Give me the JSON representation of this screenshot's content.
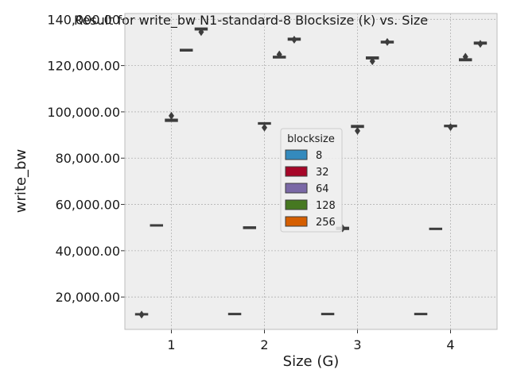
{
  "chart_data": {
    "type": "boxplot",
    "title": "Result for write_bw N1-standard-8 Blocksize (k) vs. Size",
    "xlabel": "Size (G)",
    "ylabel": "write_bw",
    "categories": [
      "1",
      "2",
      "3",
      "4"
    ],
    "ylim": [
      6000,
      142500
    ],
    "yticks": [
      20000,
      40000,
      60000,
      80000,
      100000,
      120000,
      140000
    ],
    "ytick_labels": [
      "20,000.00",
      "40,000.00",
      "60,000.00",
      "80,000.00",
      "100,000.00",
      "120,000.00",
      "140,000.00"
    ],
    "grid": true,
    "legend": {
      "title": "blocksize",
      "placement": "center",
      "entries": [
        {
          "label": "8",
          "color": "#348ABD"
        },
        {
          "label": "32",
          "color": "#A60628"
        },
        {
          "label": "64",
          "color": "#7A68A6"
        },
        {
          "label": "128",
          "color": "#467821"
        },
        {
          "label": "256",
          "color": "#D55E00"
        }
      ]
    },
    "series": [
      {
        "blocksize": "8",
        "color": "#348ABD",
        "values": [
          {
            "median": 12600,
            "q1": 12400,
            "q3": 12800,
            "outliers": [
              12400
            ]
          },
          {
            "median": 12700,
            "q1": 12500,
            "q3": 12900,
            "outliers": []
          },
          {
            "median": 12700,
            "q1": 12500,
            "q3": 12900,
            "outliers": []
          },
          {
            "median": 12700,
            "q1": 12500,
            "q3": 12900,
            "outliers": []
          }
        ]
      },
      {
        "blocksize": "32",
        "color": "#A60628",
        "values": [
          {
            "median": 51000,
            "q1": 50800,
            "q3": 51200,
            "outliers": []
          },
          {
            "median": 50000,
            "q1": 49600,
            "q3": 50300,
            "outliers": []
          },
          {
            "median": 49700,
            "q1": 49200,
            "q3": 50100,
            "outliers": [
              49700
            ]
          },
          {
            "median": 49500,
            "q1": 49300,
            "q3": 49700,
            "outliers": []
          }
        ]
      },
      {
        "blocksize": "64",
        "color": "#7A68A6",
        "values": [
          {
            "median": 96300,
            "q1": 95900,
            "q3": 96800,
            "outliers": [
              98300
            ]
          },
          {
            "median": 95000,
            "q1": 94700,
            "q3": 95300,
            "outliers": [
              93200
            ]
          },
          {
            "median": 93700,
            "q1": 93300,
            "q3": 94100,
            "outliers": [
              91800
            ]
          },
          {
            "median": 93900,
            "q1": 93600,
            "q3": 94200,
            "outliers": [
              93400
            ]
          }
        ]
      },
      {
        "blocksize": "128",
        "color": "#467821",
        "values": [
          {
            "median": 126700,
            "q1": 126300,
            "q3": 127000,
            "outliers": []
          },
          {
            "median": 123700,
            "q1": 123300,
            "q3": 124000,
            "outliers": [
              124800
            ]
          },
          {
            "median": 123300,
            "q1": 122900,
            "q3": 123700,
            "outliers": [
              121900
            ]
          },
          {
            "median": 122500,
            "q1": 122100,
            "q3": 122900,
            "outliers": [
              123800
            ]
          }
        ]
      },
      {
        "blocksize": "256",
        "color": "#D55E00",
        "values": [
          {
            "median": 135800,
            "q1": 135400,
            "q3": 136200,
            "outliers": [
              134500
            ]
          },
          {
            "median": 131400,
            "q1": 131000,
            "q3": 131800,
            "outliers": [
              131200
            ]
          },
          {
            "median": 130200,
            "q1": 129800,
            "q3": 130500,
            "outliers": [
              130200
            ]
          },
          {
            "median": 129700,
            "q1": 129300,
            "q3": 130100,
            "outliers": [
              129400
            ]
          }
        ]
      }
    ]
  }
}
